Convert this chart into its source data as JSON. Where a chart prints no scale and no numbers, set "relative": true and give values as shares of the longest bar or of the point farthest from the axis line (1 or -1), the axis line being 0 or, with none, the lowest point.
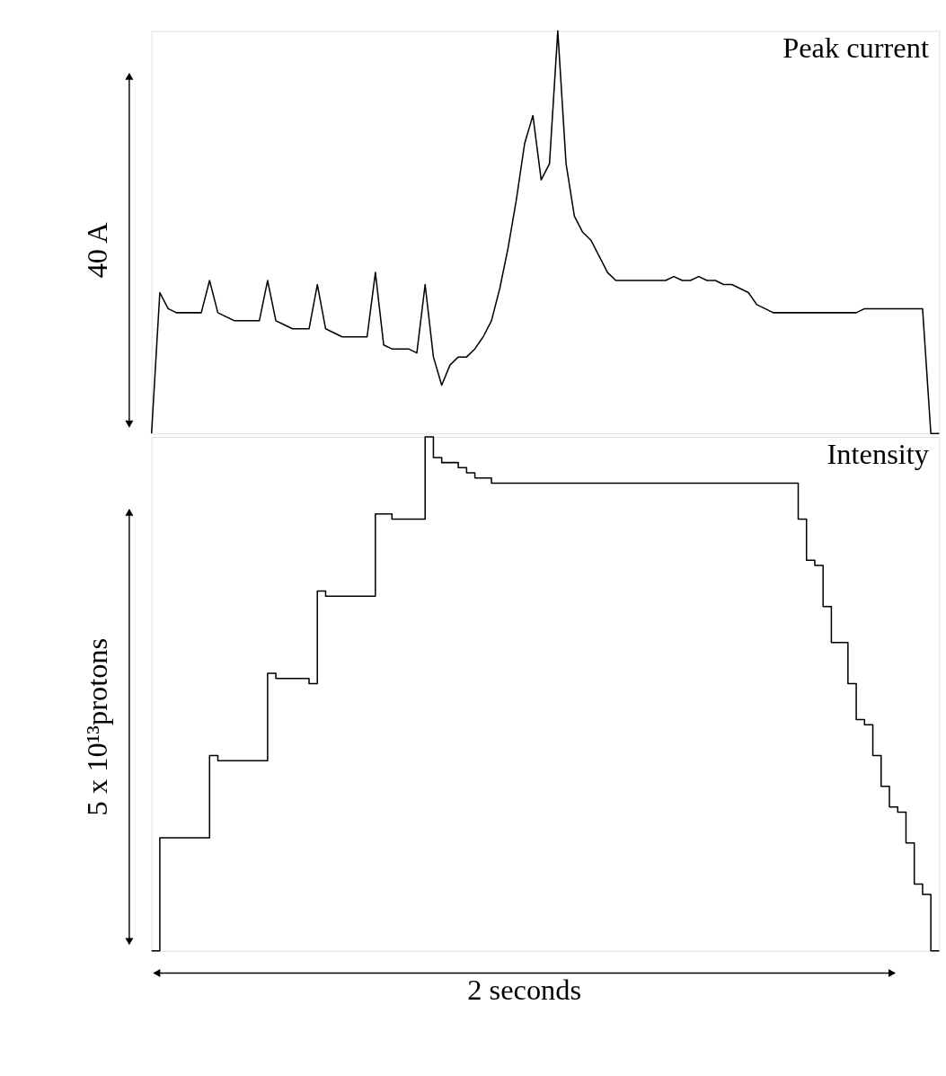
{
  "chart_data": [
    {
      "type": "line",
      "title": "Peak current",
      "ylabel": "40 A",
      "relative": true,
      "categories": [
        null,
        null,
        null,
        null,
        null,
        null,
        null,
        null,
        null,
        null,
        null,
        null,
        null,
        null,
        null,
        null,
        null,
        null,
        null,
        null,
        null,
        null,
        null,
        null,
        null,
        null,
        null,
        null,
        null,
        null,
        null,
        null,
        null,
        null,
        null,
        null,
        null,
        null,
        null,
        null,
        null,
        null,
        null,
        null,
        null,
        null,
        null,
        null,
        null,
        null,
        null,
        null,
        null,
        null,
        null,
        null,
        null,
        null,
        null,
        null,
        null,
        null,
        null,
        null,
        null,
        null,
        null,
        null,
        null,
        null,
        null,
        null,
        null,
        null,
        null,
        null,
        null,
        null,
        null,
        null,
        null,
        null,
        null,
        null,
        null,
        null,
        null,
        null,
        null,
        null,
        null,
        null,
        null,
        null,
        null,
        null
      ],
      "series": [
        {
          "color": "#000000",
          "values": [
            0,
            0.35,
            0.31,
            0.3,
            0.3,
            0.3,
            0.3,
            0.38,
            0.3,
            0.29,
            0.28,
            0.28,
            0.28,
            0.28,
            0.38,
            0.28,
            0.27,
            0.26,
            0.26,
            0.26,
            0.37,
            0.26,
            0.25,
            0.24,
            0.24,
            0.24,
            0.24,
            0.4,
            0.22,
            0.21,
            0.21,
            0.21,
            0.2,
            0.37,
            0.19,
            0.12,
            0.17,
            0.19,
            0.19,
            0.21,
            0.24,
            0.28,
            0.36,
            0.46,
            0.58,
            0.72,
            0.79,
            0.63,
            0.67,
            1.0,
            0.67,
            0.54,
            0.5,
            0.48,
            0.44,
            0.4,
            0.38,
            0.38,
            0.38,
            0.38,
            0.38,
            0.38,
            0.38,
            0.39,
            0.38,
            0.38,
            0.39,
            0.38,
            0.38,
            0.37,
            0.37,
            0.36,
            0.35,
            0.32,
            0.31,
            0.3,
            0.3,
            0.3,
            0.3,
            0.3,
            0.3,
            0.3,
            0.3,
            0.3,
            0.3,
            0.3,
            0.31,
            0.31,
            0.31,
            0.31,
            0.31,
            0.31,
            0.31,
            0.31,
            0,
            0
          ]
        }
      ]
    },
    {
      "type": "step",
      "title": "Intensity",
      "ylabel": "5 x 10¹³protons",
      "xlabel": "2 seconds",
      "relative": true,
      "categories": [
        null,
        null,
        null,
        null,
        null,
        null,
        null,
        null,
        null,
        null,
        null,
        null,
        null,
        null,
        null,
        null,
        null,
        null,
        null,
        null,
        null,
        null,
        null,
        null,
        null,
        null,
        null,
        null,
        null,
        null,
        null,
        null,
        null,
        null,
        null,
        null,
        null,
        null,
        null,
        null,
        null,
        null,
        null,
        null,
        null,
        null,
        null,
        null,
        null,
        null,
        null,
        null,
        null,
        null,
        null,
        null,
        null,
        null,
        null,
        null,
        null,
        null,
        null,
        null,
        null,
        null,
        null,
        null,
        null,
        null,
        null,
        null,
        null,
        null,
        null,
        null,
        null,
        null,
        null,
        null,
        null,
        null,
        null,
        null,
        null,
        null,
        null,
        null,
        null,
        null,
        null,
        null,
        null,
        null,
        null,
        null
      ],
      "series": [
        {
          "color": "#000000",
          "values": [
            0,
            0.22,
            0.22,
            0.22,
            0.22,
            0.22,
            0.22,
            0.38,
            0.37,
            0.37,
            0.37,
            0.37,
            0.37,
            0.37,
            0.54,
            0.53,
            0.53,
            0.53,
            0.53,
            0.52,
            0.7,
            0.69,
            0.69,
            0.69,
            0.69,
            0.69,
            0.69,
            0.85,
            0.85,
            0.84,
            0.84,
            0.84,
            0.84,
            1.0,
            0.96,
            0.95,
            0.95,
            0.94,
            0.93,
            0.92,
            0.92,
            0.91,
            0.91,
            0.91,
            0.91,
            0.91,
            0.91,
            0.91,
            0.91,
            0.91,
            0.91,
            0.91,
            0.91,
            0.91,
            0.91,
            0.91,
            0.91,
            0.91,
            0.91,
            0.91,
            0.91,
            0.91,
            0.91,
            0.91,
            0.91,
            0.91,
            0.91,
            0.91,
            0.91,
            0.91,
            0.91,
            0.91,
            0.91,
            0.91,
            0.91,
            0.91,
            0.91,
            0.91,
            0.84,
            0.76,
            0.75,
            0.67,
            0.6,
            0.6,
            0.52,
            0.45,
            0.44,
            0.38,
            0.32,
            0.28,
            0.27,
            0.21,
            0.13,
            0.11,
            0,
            0
          ]
        }
      ]
    }
  ]
}
